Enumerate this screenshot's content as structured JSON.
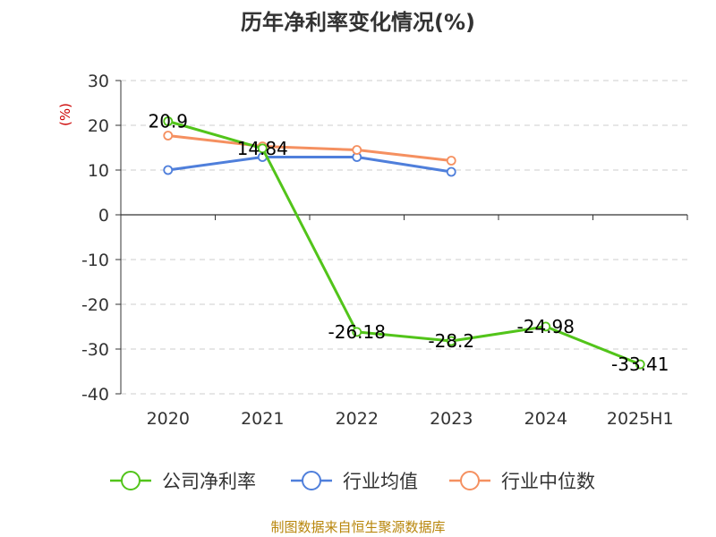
{
  "chart_data": {
    "type": "line",
    "title": "历年净利率变化情况(%)",
    "ylabel": "(%)",
    "xlabel": "",
    "categories": [
      "2020",
      "2021",
      "2022",
      "2023",
      "2024",
      "2025H1"
    ],
    "ylim": [
      -40,
      30
    ],
    "yticks": [
      "30",
      "20",
      "10",
      "0",
      "-10",
      "-20",
      "-30",
      "-40"
    ],
    "ytick_values": [
      30,
      20,
      10,
      0,
      -10,
      -20,
      -30,
      -40
    ],
    "grid": true,
    "legend_position": "bottom",
    "series": [
      {
        "name": "公司净利率",
        "color": "#52c41a",
        "values": [
          20.9,
          14.84,
          -26.18,
          -28.2,
          -24.98,
          -33.41
        ],
        "labels": [
          "20.9",
          "14.84",
          "-26.18",
          "-28.2",
          "-24.98",
          "-33.41"
        ]
      },
      {
        "name": "行业均值",
        "color": "#4f7fdb",
        "values": [
          10.0,
          12.9,
          12.9,
          9.6,
          null,
          null
        ]
      },
      {
        "name": "行业中位数",
        "color": "#f59060",
        "values": [
          17.7,
          15.3,
          14.5,
          12.1,
          null,
          null
        ]
      }
    ]
  },
  "source_note": "制图数据来自恒生聚源数据库"
}
